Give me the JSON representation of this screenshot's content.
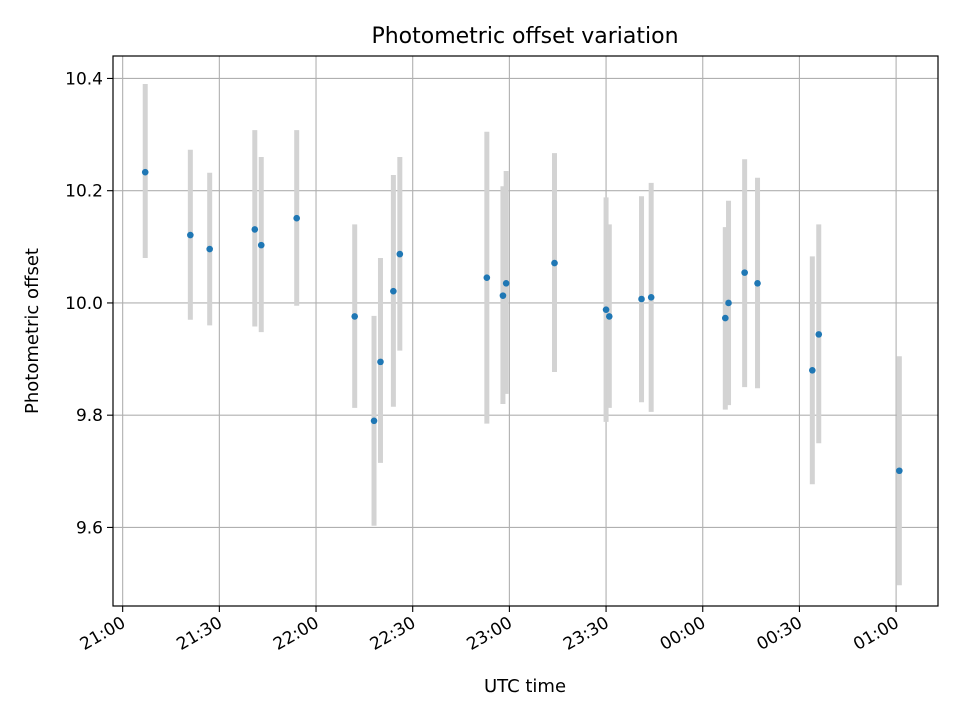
{
  "chart_data": {
    "type": "scatter",
    "title": "Photometric offset variation",
    "xlabel": "UTC time",
    "ylabel": "Photometric offset",
    "grid": true,
    "x_axis_type": "time",
    "xlim": [
      "20:57",
      "01:13"
    ],
    "ylim": [
      9.46,
      10.44
    ],
    "x_ticks": [
      "21:00",
      "21:30",
      "22:00",
      "22:30",
      "23:00",
      "23:30",
      "00:00",
      "00:30",
      "01:00"
    ],
    "y_ticks": [
      "9.6",
      "9.8",
      "10.0",
      "10.2",
      "10.4"
    ],
    "colors": {
      "marker": "#1f77b4",
      "errorbar": "#d3d3d3",
      "grid": "#b0b0b0"
    },
    "points": [
      {
        "t": "21:07",
        "y": 10.233,
        "lo": 10.08,
        "hi": 10.39
      },
      {
        "t": "21:21",
        "y": 10.121,
        "lo": 9.97,
        "hi": 10.273
      },
      {
        "t": "21:27",
        "y": 10.096,
        "lo": 9.96,
        "hi": 10.232
      },
      {
        "t": "21:41",
        "y": 10.131,
        "lo": 9.958,
        "hi": 10.308
      },
      {
        "t": "21:43",
        "y": 10.103,
        "lo": 9.948,
        "hi": 10.26
      },
      {
        "t": "21:54",
        "y": 10.151,
        "lo": 9.995,
        "hi": 10.308
      },
      {
        "t": "22:12",
        "y": 9.976,
        "lo": 9.813,
        "hi": 10.14
      },
      {
        "t": "22:18",
        "y": 9.79,
        "lo": 9.603,
        "hi": 9.977
      },
      {
        "t": "22:20",
        "y": 9.895,
        "lo": 9.715,
        "hi": 10.08
      },
      {
        "t": "22:24",
        "y": 10.021,
        "lo": 9.815,
        "hi": 10.228
      },
      {
        "t": "22:26",
        "y": 10.087,
        "lo": 9.915,
        "hi": 10.26
      },
      {
        "t": "22:53",
        "y": 10.045,
        "lo": 9.785,
        "hi": 10.305
      },
      {
        "t": "22:58",
        "y": 10.013,
        "lo": 9.82,
        "hi": 10.208
      },
      {
        "t": "22:59",
        "y": 10.035,
        "lo": 9.838,
        "hi": 10.235
      },
      {
        "t": "23:14",
        "y": 10.071,
        "lo": 9.877,
        "hi": 10.267
      },
      {
        "t": "23:30",
        "y": 9.988,
        "lo": 9.788,
        "hi": 10.188
      },
      {
        "t": "23:31",
        "y": 9.976,
        "lo": 9.813,
        "hi": 10.14
      },
      {
        "t": "23:41",
        "y": 10.007,
        "lo": 9.823,
        "hi": 10.19
      },
      {
        "t": "23:44",
        "y": 10.01,
        "lo": 9.806,
        "hi": 10.214
      },
      {
        "t": "00:07",
        "y": 9.973,
        "lo": 9.81,
        "hi": 10.135
      },
      {
        "t": "00:08",
        "y": 10.0,
        "lo": 9.818,
        "hi": 10.182
      },
      {
        "t": "00:13",
        "y": 10.054,
        "lo": 9.85,
        "hi": 10.256
      },
      {
        "t": "00:17",
        "y": 10.035,
        "lo": 9.848,
        "hi": 10.223
      },
      {
        "t": "00:34",
        "y": 9.88,
        "lo": 9.677,
        "hi": 10.083
      },
      {
        "t": "00:36",
        "y": 9.944,
        "lo": 9.75,
        "hi": 10.14
      },
      {
        "t": "01:01",
        "y": 9.701,
        "lo": 9.497,
        "hi": 9.905
      }
    ]
  }
}
